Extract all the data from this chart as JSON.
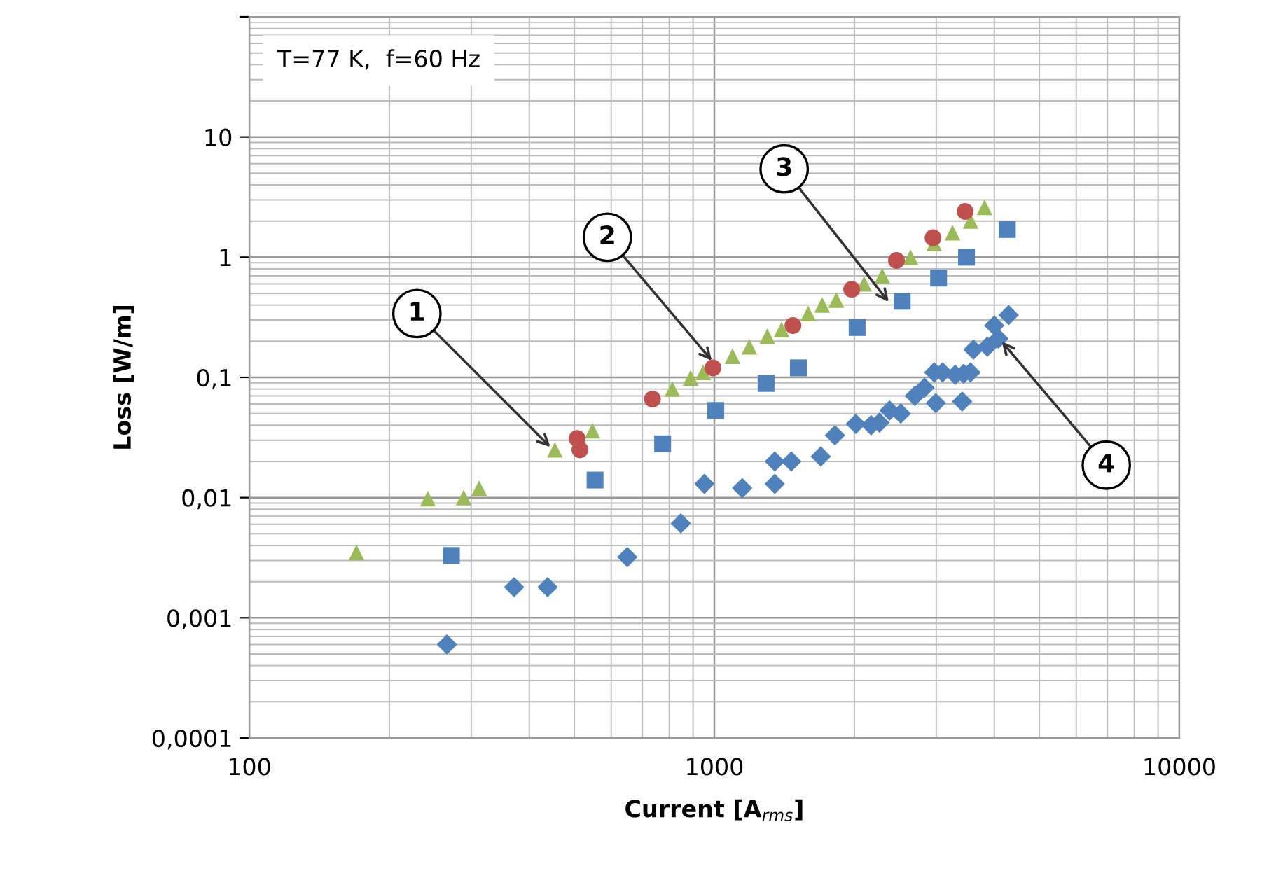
{
  "chart_data": {
    "type": "scatter",
    "xlabel": "Current [A$_{rms}$]",
    "ylabel": "Loss [W/m]",
    "log": "xy",
    "grid": true,
    "xlim": [
      100,
      10000
    ],
    "xticks": [
      100,
      1000,
      10000
    ],
    "ylim": [
      0.0001,
      100
    ],
    "yticks": [
      {
        "value": 0.0001,
        "label": "0,0001"
      },
      {
        "value": 0.001,
        "label": "0,001"
      },
      {
        "value": 0.01,
        "label": "0,01"
      },
      {
        "value": 0.1,
        "label": "0,1"
      },
      1,
      10,
      {
        "value": 100,
        "label": null
      }
    ],
    "series": [
      {
        "color": "#9bbb59",
        "marker": "triangle",
        "x": [
          170,
          242,
          289,
          312,
          454,
          547,
          812,
          889,
          946,
          1094,
          1189,
          1300,
          1395,
          1592,
          1706,
          1829,
          2099,
          2296,
          2641,
          2970,
          3252,
          3556,
          3811
        ],
        "values": [
          0.0035,
          0.0098,
          0.01,
          0.012,
          0.025,
          0.036,
          0.08,
          0.099,
          0.11,
          0.15,
          0.18,
          0.22,
          0.25,
          0.34,
          0.4,
          0.44,
          0.6,
          0.7,
          1.0,
          1.3,
          1.6,
          2.0,
          2.6
        ]
      },
      {
        "color": "#c0504d",
        "marker": "circle",
        "x": [
          507,
          514,
          736,
          993,
          1476,
          1974,
          2464,
          2953,
          3462
        ],
        "values": [
          0.031,
          0.025,
          0.066,
          0.12,
          0.27,
          0.54,
          0.94,
          1.45,
          2.4
        ]
      },
      {
        "color": "#4f81bd",
        "marker": "square",
        "x": [
          272,
          554,
          774,
          1007,
          1292,
          1516,
          2028,
          2535,
          3036,
          3486,
          4266
        ],
        "values": [
          0.0033,
          0.014,
          0.028,
          0.053,
          0.089,
          0.12,
          0.26,
          0.43,
          0.67,
          1.0,
          1.7
        ]
      },
      {
        "color": "#4f81bd",
        "marker": "diamond",
        "x": [
          266,
          371,
          438,
          650,
          847,
          952,
          1148,
          1349,
          1349,
          1464,
          1694,
          1817,
          2015,
          2173,
          2265,
          2381,
          2517,
          2698,
          2831,
          2970,
          3097,
          3296,
          3436,
          3556,
          2994,
          3412,
          3608,
          3864,
          4083,
          3999,
          4295
        ],
        "values": [
          0.0006,
          0.0018,
          0.0018,
          0.0032,
          0.0061,
          0.013,
          0.012,
          0.013,
          0.02,
          0.02,
          0.022,
          0.033,
          0.041,
          0.04,
          0.042,
          0.053,
          0.05,
          0.07,
          0.082,
          0.11,
          0.11,
          0.105,
          0.107,
          0.11,
          0.061,
          0.063,
          0.17,
          0.18,
          0.21,
          0.27,
          0.33
        ]
      }
    ],
    "annotations": [
      "T=77 K,  f=60 Hz",
      {
        "text": "1",
        "x": 450,
        "y": 0.025
      },
      {
        "text": "2",
        "x": 1000,
        "y": 0.13
      },
      {
        "text": "3",
        "x": 2400,
        "y": 0.4
      },
      {
        "text": "4",
        "x": 4100,
        "y": 0.21
      }
    ]
  }
}
